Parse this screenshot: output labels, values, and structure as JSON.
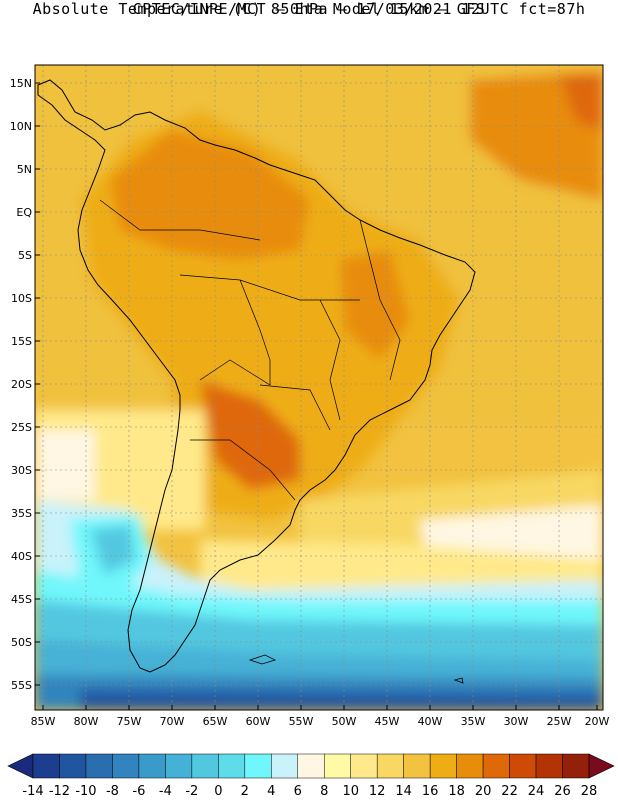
{
  "header": {
    "line1": "CPTEC/INPE/MCT –  Eta Model 15km – GFS",
    "line2": "Absolute Temperature (C) 850hPa – 17/03/2021 12UTC fct=87h"
  },
  "map": {
    "region": "South America",
    "lat_labels": [
      "15N",
      "10N",
      "5N",
      "EQ",
      "5S",
      "10S",
      "15S",
      "20S",
      "25S",
      "30S",
      "35S",
      "40S",
      "45S",
      "50S",
      "55S"
    ],
    "lon_labels": [
      "85W",
      "80W",
      "75W",
      "70W",
      "65W",
      "60W",
      "55W",
      "50W",
      "45W",
      "40W",
      "35W",
      "30W",
      "25W",
      "20W"
    ]
  },
  "colorbar": {
    "labels": [
      "-14",
      "-12",
      "-10",
      "-8",
      "-6",
      "-4",
      "-2",
      "0",
      "2",
      "4",
      "6",
      "8",
      "10",
      "12",
      "14",
      "16",
      "18",
      "20",
      "22",
      "24",
      "26",
      "28"
    ],
    "colors": [
      "#1c3e8f",
      "#2255a0",
      "#2a6eb0",
      "#3184bd",
      "#3a9bca",
      "#46b1d6",
      "#52c7e0",
      "#5fdcea",
      "#6ff7fb",
      "#c9f2fb",
      "#fff7e3",
      "#fffaa6",
      "#ffe98a",
      "#f8d863",
      "#f2c240",
      "#eead14",
      "#e88c0c",
      "#df6809",
      "#cd4b07",
      "#b43305",
      "#95200a"
    ],
    "low_color": "#1a2a7c",
    "high_color": "#7a0a1e"
  }
}
